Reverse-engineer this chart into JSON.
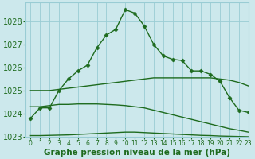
{
  "line1_x": [
    0,
    1,
    2,
    3,
    4,
    5,
    6,
    7,
    8,
    9,
    10,
    11,
    12,
    13,
    14,
    15,
    16,
    17,
    18,
    19,
    20,
    21,
    22,
    23
  ],
  "line1_y": [
    1023.8,
    1024.25,
    1024.25,
    1025.0,
    1025.5,
    1025.85,
    1026.1,
    1026.85,
    1027.4,
    1027.65,
    1028.5,
    1028.35,
    1027.8,
    1027.0,
    1026.5,
    1026.35,
    1026.3,
    1025.85,
    1025.85,
    1025.7,
    1025.4,
    1024.7,
    1024.15,
    1024.05
  ],
  "line2_x": [
    0,
    1,
    2,
    3,
    4,
    5,
    6,
    7,
    8,
    9,
    10,
    11,
    12,
    13,
    14,
    15,
    16,
    17,
    18,
    19,
    20,
    21,
    22,
    23
  ],
  "line2_y": [
    1025.0,
    1025.0,
    1025.0,
    1025.05,
    1025.1,
    1025.15,
    1025.2,
    1025.25,
    1025.3,
    1025.35,
    1025.4,
    1025.45,
    1025.5,
    1025.55,
    1025.55,
    1025.55,
    1025.55,
    1025.55,
    1025.55,
    1025.55,
    1025.5,
    1025.45,
    1025.35,
    1025.2
  ],
  "line3_x": [
    0,
    1,
    2,
    3,
    4,
    5,
    6,
    7,
    8,
    9,
    10,
    11,
    12,
    13,
    14,
    15,
    16,
    17,
    18,
    19,
    20,
    21,
    22,
    23
  ],
  "line3_y": [
    1024.3,
    1024.3,
    1024.35,
    1024.4,
    1024.4,
    1024.42,
    1024.42,
    1024.42,
    1024.4,
    1024.38,
    1024.35,
    1024.3,
    1024.25,
    1024.15,
    1024.05,
    1023.95,
    1023.85,
    1023.75,
    1023.65,
    1023.55,
    1023.45,
    1023.35,
    1023.28,
    1023.2
  ],
  "line4_x": [
    0,
    1,
    2,
    3,
    4,
    5,
    6,
    7,
    8,
    9,
    10,
    11,
    12,
    13,
    14,
    15,
    16,
    17,
    18,
    19,
    20,
    21,
    22,
    23
  ],
  "line4_y": [
    1023.05,
    1023.05,
    1023.06,
    1023.07,
    1023.08,
    1023.1,
    1023.12,
    1023.14,
    1023.16,
    1023.18,
    1023.2,
    1023.2,
    1023.18,
    1023.16,
    1023.14,
    1023.12,
    1023.1,
    1023.08,
    1023.06,
    1023.05,
    1023.03,
    1023.02,
    1023.01,
    1023.0
  ],
  "background_color": "#cce8ec",
  "grid_color": "#99ccd4",
  "line_color": "#1e6b1e",
  "ylim": [
    1023.0,
    1028.8
  ],
  "xlim": [
    -0.5,
    23
  ],
  "yticks": [
    1023,
    1024,
    1025,
    1026,
    1027,
    1028
  ],
  "xticks": [
    0,
    1,
    2,
    3,
    4,
    5,
    6,
    7,
    8,
    9,
    10,
    11,
    12,
    13,
    14,
    15,
    16,
    17,
    18,
    19,
    20,
    21,
    22,
    23
  ],
  "xlabel": "Graphe pression niveau de la mer (hPa)",
  "xlabel_fontsize": 7.5,
  "ytick_fontsize": 7.0,
  "xtick_fontsize": 5.5,
  "marker": "D",
  "marker_size": 2.5,
  "line_width": 1.0
}
